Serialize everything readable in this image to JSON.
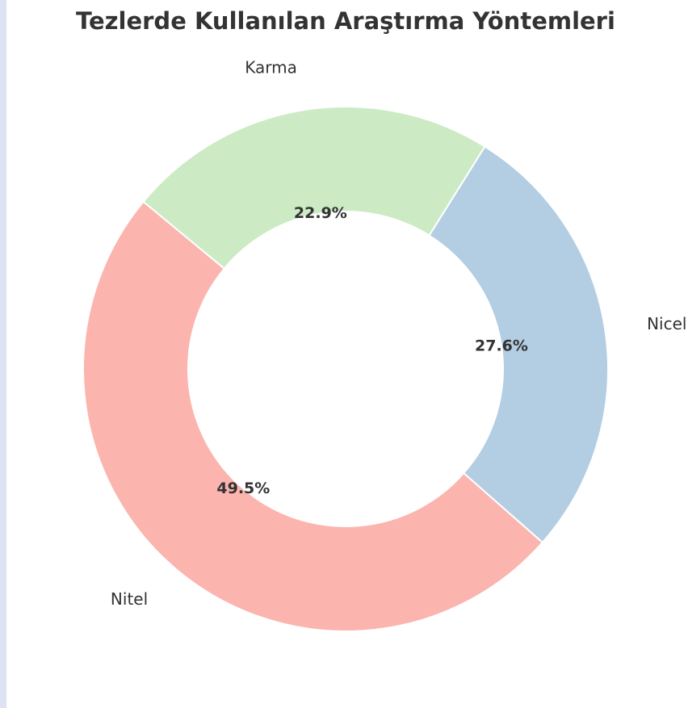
{
  "chart_data": {
    "type": "donut",
    "title": "Tezlerde Kullanılan Araştırma Yöntemleri",
    "categories": [
      "Nitel",
      "Nicel",
      "Karma"
    ],
    "values": [
      49.5,
      27.6,
      22.9
    ],
    "value_labels": [
      "49.5%",
      "27.6%",
      "22.9%"
    ],
    "colors": [
      "#fbb4ae",
      "#b3cde3",
      "#ccebc5"
    ]
  }
}
